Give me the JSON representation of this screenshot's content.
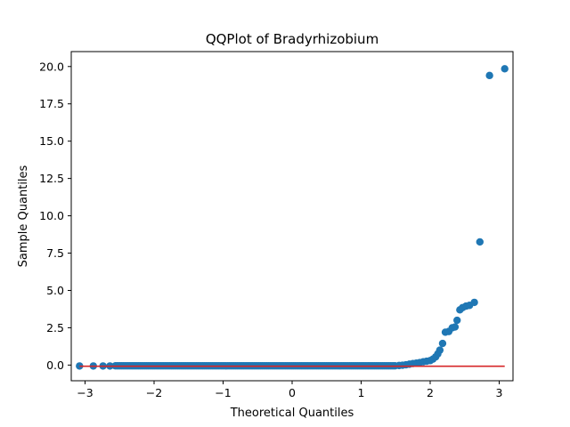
{
  "chart_data": {
    "type": "scatter",
    "title": "QQPlot of Bradyrhizobium",
    "xlabel": "Theoretical Quantiles",
    "ylabel": "Sample Quantiles",
    "xlim": [
      -3.2,
      3.2
    ],
    "ylim": [
      -1.05,
      21.0
    ],
    "xticks": [
      -3,
      -2,
      -1,
      0,
      1,
      2,
      3
    ],
    "xtick_labels": [
      "−3",
      "−2",
      "−1",
      "0",
      "1",
      "2",
      "3"
    ],
    "yticks": [
      0,
      2.5,
      5,
      7.5,
      10,
      12.5,
      15,
      17.5,
      20
    ],
    "ytick_labels": [
      "0.0",
      "2.5",
      "5.0",
      "7.5",
      "10.0",
      "12.5",
      "15.0",
      "17.5",
      "20.0"
    ],
    "grid": false,
    "legend": "none",
    "marker_color": "#1f77b4",
    "line_color": "#d62728",
    "reference_line": {
      "x": [
        -3.08,
        3.08
      ],
      "y": [
        -0.08,
        -0.08
      ]
    },
    "points": [
      [
        -3.08,
        -0.06
      ],
      [
        -2.88,
        -0.06
      ],
      [
        -2.74,
        -0.06
      ],
      [
        -2.64,
        -0.06
      ],
      [
        1.55,
        -0.03
      ],
      [
        1.6,
        -0.01
      ],
      [
        1.65,
        0.02
      ],
      [
        1.7,
        0.06
      ],
      [
        1.75,
        0.1
      ],
      [
        1.8,
        0.13
      ],
      [
        1.85,
        0.17
      ],
      [
        1.9,
        0.22
      ],
      [
        1.95,
        0.26
      ],
      [
        2.0,
        0.3
      ],
      [
        2.04,
        0.4
      ],
      [
        2.08,
        0.55
      ],
      [
        2.11,
        0.75
      ],
      [
        2.14,
        1.0
      ],
      [
        2.18,
        1.45
      ],
      [
        2.22,
        2.2
      ],
      [
        2.27,
        2.25
      ],
      [
        2.32,
        2.5
      ],
      [
        2.36,
        2.55
      ],
      [
        2.39,
        3.0
      ],
      [
        2.43,
        3.7
      ],
      [
        2.47,
        3.85
      ],
      [
        2.52,
        3.95
      ],
      [
        2.57,
        4.0
      ],
      [
        2.64,
        4.2
      ],
      [
        2.72,
        8.25
      ],
      [
        2.86,
        19.4
      ],
      [
        3.08,
        19.85
      ]
    ],
    "dense_band": {
      "x_start": -2.56,
      "x_end": 1.5,
      "y": -0.05
    }
  }
}
